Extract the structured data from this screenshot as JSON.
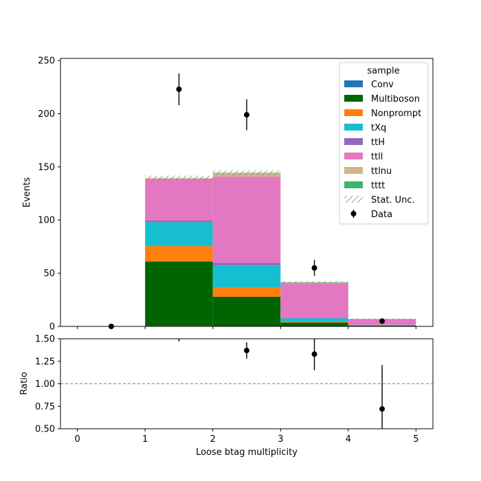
{
  "chart_data": {
    "type": "bar",
    "stacked": true,
    "x_bin_edges": [
      1,
      2,
      3,
      4,
      5
    ],
    "xlabel": "Loose btag multiplicity",
    "xlim": [
      -0.25,
      5.25
    ],
    "x_ticks": [
      0,
      1,
      2,
      3,
      4,
      5
    ],
    "main_panel": {
      "ylabel": "Events",
      "ylim": [
        0,
        252
      ],
      "y_ticks": [
        0,
        50,
        100,
        150,
        200,
        250
      ]
    },
    "ratio_panel": {
      "ylabel": "Ratio",
      "ylim": [
        0.5,
        1.5
      ],
      "y_ticks": [
        "0.50",
        "0.75",
        "1.00",
        "1.25",
        "1.50"
      ],
      "reference_line": 1.0,
      "points": [
        {
          "x": 1.5,
          "y": 1.57,
          "err": 0.1
        },
        {
          "x": 2.5,
          "y": 1.37,
          "err": 0.09
        },
        {
          "x": 3.5,
          "y": 1.33,
          "err": 0.18
        },
        {
          "x": 4.5,
          "y": 0.72,
          "err": 0.49
        }
      ]
    },
    "series": [
      {
        "name": "Conv",
        "color": "#1f77b4",
        "values": [
          0.5,
          0.3,
          0.2,
          0.1
        ]
      },
      {
        "name": "Multiboson",
        "color": "#006400",
        "values": [
          60.5,
          27.5,
          3.5,
          0.6
        ]
      },
      {
        "name": "Nonprompt",
        "color": "#ff7f0e",
        "values": [
          14.5,
          9.0,
          0.8,
          0.1
        ]
      },
      {
        "name": "tXq",
        "color": "#17becf",
        "values": [
          22.5,
          20.5,
          3.0,
          0.6
        ]
      },
      {
        "name": "ttH",
        "color": "#9467bd",
        "values": [
          1.5,
          2.5,
          0.5,
          0.1
        ]
      },
      {
        "name": "ttll",
        "color": "#e377c2",
        "values": [
          39.0,
          81.0,
          32.5,
          5.0
        ]
      },
      {
        "name": "ttlnu",
        "color": "#d2b48c",
        "values": [
          1.0,
          3.5,
          0.5,
          0.2
        ]
      },
      {
        "name": "tttt",
        "color": "#3cb371",
        "values": [
          0.0,
          0.2,
          0.5,
          0.3
        ]
      }
    ],
    "stat_unc": {
      "name": "Stat. Unc.",
      "half_width": [
        2.3,
        2.3,
        1.0,
        0.5
      ]
    },
    "data": {
      "name": "Data",
      "points": [
        {
          "x": 0.5,
          "y": 0,
          "err": 0
        },
        {
          "x": 1.5,
          "y": 223,
          "err": 15
        },
        {
          "x": 2.5,
          "y": 199,
          "err": 14.5
        },
        {
          "x": 3.5,
          "y": 55,
          "err": 7.5
        },
        {
          "x": 4.5,
          "y": 5,
          "err": 2.2
        }
      ]
    },
    "legend": {
      "title": "sample",
      "position": "top-right"
    }
  }
}
